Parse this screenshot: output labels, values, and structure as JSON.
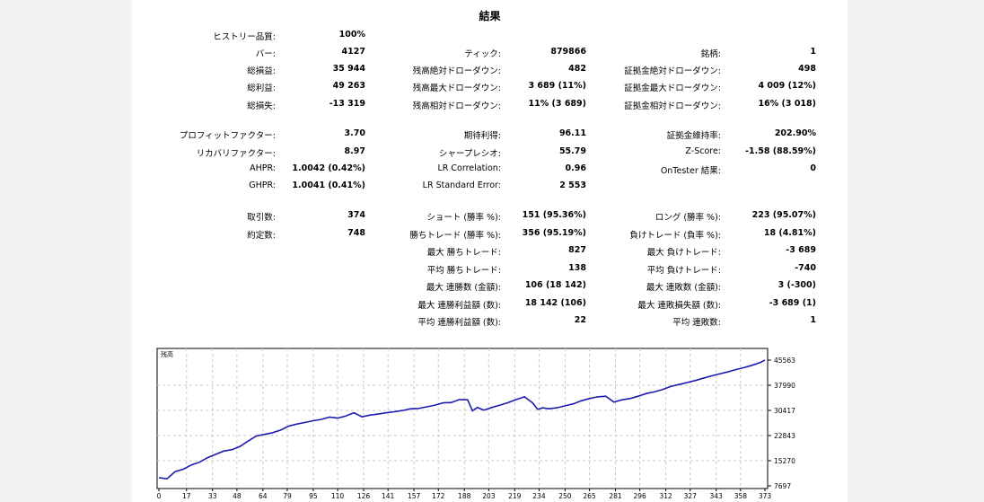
{
  "report": {
    "title": "結果",
    "rows": [
      [
        [
          "ヒストリー品質:",
          "100%"
        ],
        null,
        null
      ],
      [
        [
          "バー:",
          "4127"
        ],
        [
          "ティック:",
          "879866"
        ],
        [
          "銘柄:",
          "1"
        ]
      ],
      [
        [
          "総損益:",
          "35 944"
        ],
        [
          "残高絶対ドローダウン:",
          "482"
        ],
        [
          "証拠金絶対ドローダウン:",
          "498"
        ]
      ],
      [
        [
          "総利益:",
          "49 263"
        ],
        [
          "残高最大ドローダウン:",
          "3 689 (11%)"
        ],
        [
          "証拠金最大ドローダウン:",
          "4 009 (12%)"
        ]
      ],
      [
        [
          "総損失:",
          "-13 319"
        ],
        [
          "残高相対ドローダウン:",
          "11% (3 689)"
        ],
        [
          "証拠金相対ドローダウン:",
          "16% (3 018)"
        ]
      ],
      [
        [
          "プロフィットファクター:",
          "3.70"
        ],
        [
          "期待利得:",
          "96.11"
        ],
        [
          "証拠金維持率:",
          "202.90%"
        ]
      ],
      [
        [
          "リカバリファクター:",
          "8.97"
        ],
        [
          "シャープレシオ:",
          "55.79"
        ],
        [
          "Z-Score:",
          "-1.58 (88.59%)"
        ]
      ],
      [
        [
          "AHPR:",
          "1.0042 (0.42%)"
        ],
        [
          "LR Correlation:",
          "0.96"
        ],
        [
          "OnTester 結果:",
          "0"
        ]
      ],
      [
        [
          "GHPR:",
          "1.0041 (0.41%)"
        ],
        [
          "LR Standard Error:",
          "2 553"
        ],
        null
      ],
      [
        [
          "取引数:",
          "374"
        ],
        [
          "ショート (勝率 %):",
          "151 (95.36%)"
        ],
        [
          "ロング (勝率 %):",
          "223 (95.07%)"
        ]
      ],
      [
        [
          "約定数:",
          "748"
        ],
        [
          "勝ちトレード (勝率 %):",
          "356 (95.19%)"
        ],
        [
          "負けトレード (負率 %):",
          "18 (4.81%)"
        ]
      ],
      [
        null,
        [
          "最大 勝ちトレード:",
          "827"
        ],
        [
          "最大 負けトレード:",
          "-3 689"
        ]
      ],
      [
        null,
        [
          "平均 勝ちトレード:",
          "138"
        ],
        [
          "平均 負けトレード:",
          "-740"
        ]
      ],
      [
        null,
        [
          "最大 連勝数 (金額):",
          "106 (18 142)"
        ],
        [
          "最大 連敗数 (金額):",
          "3 (-300)"
        ]
      ],
      [
        null,
        [
          "最大 連勝利益額 (数):",
          "18 142 (106)"
        ],
        [
          "最大 連敗損失額 (数):",
          "-3 689 (1)"
        ]
      ],
      [
        null,
        [
          "平均 連勝利益額 (数):",
          "22"
        ],
        [
          "平均 連敗数:",
          "1"
        ]
      ]
    ]
  },
  "chart_data": {
    "type": "line",
    "title": "残高",
    "xlabel": "",
    "ylabel": "",
    "x_ticks": [
      "0",
      "17",
      "33",
      "48",
      "64",
      "79",
      "95",
      "110",
      "126",
      "141",
      "157",
      "172",
      "188",
      "203",
      "219",
      "234",
      "250",
      "265",
      "281",
      "296",
      "312",
      "327",
      "343",
      "358",
      "373"
    ],
    "y_ticks": [
      "45563",
      "37990",
      "30417",
      "22843",
      "15270",
      "7697"
    ],
    "xlim": [
      0,
      373
    ],
    "ylim": [
      7697,
      45563
    ],
    "grid": true,
    "line_color": "#1c1cb0",
    "series": [
      {
        "x": [
          0,
          5,
          10,
          15,
          20,
          25,
          30,
          35,
          40,
          45,
          50,
          55,
          60,
          65,
          70,
          75,
          80,
          85,
          90,
          95,
          100,
          105,
          110,
          115,
          120,
          125,
          130,
          135,
          140,
          145,
          150,
          155,
          160,
          165,
          170,
          175,
          180,
          185,
          190,
          193,
          196,
          200,
          205,
          210,
          215,
          220,
          225,
          230,
          233,
          234,
          236,
          240,
          245,
          250,
          255,
          260,
          265,
          270,
          275,
          280,
          285,
          290,
          295,
          300,
          305,
          310,
          315,
          320,
          325,
          330,
          335,
          340,
          345,
          350,
          355,
          360,
          365,
          370,
          373
        ],
        "y": [
          10150,
          9800,
          12000,
          12700,
          14000,
          14800,
          16200,
          17200,
          18200,
          18600,
          19600,
          21200,
          22700,
          23200,
          23700,
          24500,
          25700,
          26300,
          26800,
          27300,
          27700,
          28400,
          28100,
          28700,
          29700,
          28500,
          29000,
          29300,
          29700,
          30000,
          30400,
          30900,
          31000,
          31500,
          32000,
          32700,
          32800,
          33700,
          33600,
          30300,
          31300,
          30500,
          31300,
          32000,
          32800,
          33700,
          34500,
          32700,
          30800,
          30800,
          31200,
          30900,
          31200,
          31800,
          32400,
          33300,
          34000,
          34500,
          34700,
          32900,
          33600,
          34000,
          34700,
          35500,
          36000,
          36700,
          37600,
          38200,
          38800,
          39400,
          40100,
          40800,
          41400,
          42000,
          42700,
          43300,
          44000,
          44800,
          45563
        ]
      }
    ]
  }
}
